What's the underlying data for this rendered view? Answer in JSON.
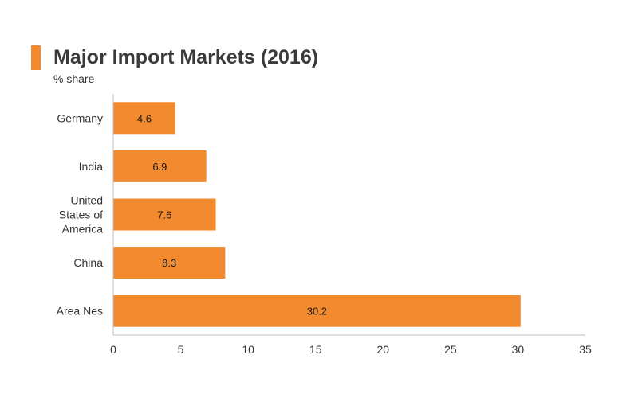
{
  "title": "Major Import Markets (2016)",
  "subtitle": "% share",
  "colors": {
    "accent": "#f28a30",
    "bar": "#f28a30",
    "axis": "#bfbfbf",
    "text": "#333333"
  },
  "chart_data": {
    "type": "bar",
    "orientation": "horizontal",
    "title": "Major Import Markets (2016)",
    "subtitle": "% share",
    "categories": [
      [
        "Germany"
      ],
      [
        "India"
      ],
      [
        "United",
        "States of",
        "America"
      ],
      [
        "China"
      ],
      [
        "Area Nes"
      ]
    ],
    "values": [
      4.6,
      6.9,
      7.6,
      8.3,
      30.2
    ],
    "data_labels": [
      "4.6",
      "6.9",
      "7.6",
      "8.3",
      "30.2"
    ],
    "xlim": [
      0,
      35
    ],
    "xticks": [
      0,
      5,
      10,
      15,
      20,
      25,
      30,
      35
    ],
    "grid": false,
    "legend": "none"
  }
}
